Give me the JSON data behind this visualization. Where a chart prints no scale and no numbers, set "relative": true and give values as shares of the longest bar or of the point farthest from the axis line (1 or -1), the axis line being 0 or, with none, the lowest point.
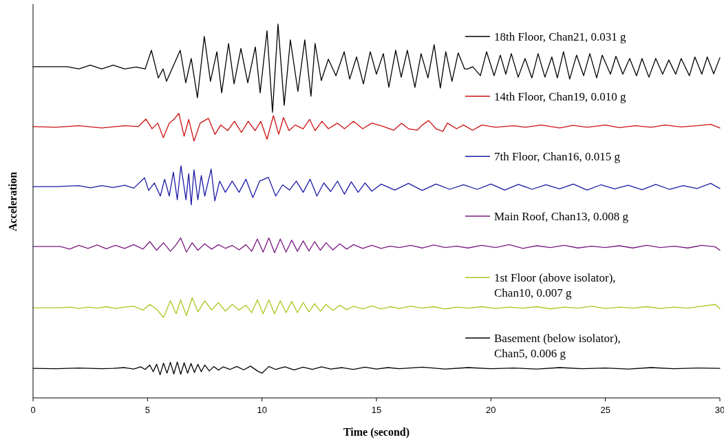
{
  "chart_data": {
    "type": "line",
    "relative": true,
    "xlabel": "Time (second)",
    "ylabel": "Acceleration",
    "xlim": [
      0,
      30
    ],
    "xticks": [
      0,
      5,
      10,
      15,
      20,
      25,
      30
    ],
    "grid": false,
    "legend": "right",
    "series": [
      {
        "name": "18th Floor, Chan21, 0.031 g",
        "color": "#000000",
        "x": [
          0,
          1.5,
          2,
          2.5,
          3,
          3.5,
          4,
          4.5,
          4.9,
          5.17,
          5.47,
          5.68,
          5.83,
          6.43,
          6.67,
          6.91,
          7.18,
          7.48,
          7.75,
          8.03,
          8.24,
          8.54,
          8.78,
          9.08,
          9.38,
          9.71,
          9.92,
          10.22,
          10.46,
          10.7,
          10.97,
          11.24,
          11.57,
          11.87,
          12.14,
          12.32,
          12.59,
          12.9,
          13.23,
          13.59,
          13.83,
          14.13,
          14.43,
          14.73,
          15.0,
          15.3,
          15.54,
          15.84,
          16.08,
          16.35,
          16.68,
          16.95,
          17.25,
          17.52,
          17.79,
          18.03,
          18.3,
          18.57,
          18.85,
          19.0,
          19.2,
          19.54,
          19.81,
          20.14,
          20.41,
          20.65,
          20.89,
          21.19,
          21.49,
          21.79,
          22.06,
          22.36,
          22.66,
          22.9,
          23.17,
          23.44,
          23.74,
          24.05,
          24.32,
          24.62,
          24.86,
          25.22,
          25.46,
          25.76,
          26.06,
          26.36,
          26.6,
          26.9,
          27.2,
          27.5,
          27.77,
          28.07,
          28.31,
          28.67,
          28.91,
          29.21,
          29.45,
          29.73,
          30
        ],
        "values": [
          0.886,
          0.886,
          0.88,
          0.89,
          0.88,
          0.89,
          0.88,
          0.885,
          0.88,
          0.93,
          0.856,
          0.88,
          0.847,
          0.93,
          0.843,
          0.908,
          0.803,
          0.967,
          0.847,
          0.926,
          0.816,
          0.948,
          0.84,
          0.935,
          0.843,
          0.939,
          0.816,
          0.982,
          0.764,
          1.0,
          0.783,
          0.958,
          0.82,
          0.958,
          0.807,
          0.948,
          0.849,
          0.906,
          0.862,
          0.926,
          0.853,
          0.912,
          0.84,
          0.926,
          0.866,
          0.921,
          0.831,
          0.93,
          0.858,
          0.93,
          0.831,
          0.921,
          0.856,
          0.945,
          0.829,
          0.926,
          0.847,
          0.923,
          0.88,
          0.88,
          0.886,
          0.862,
          0.926,
          0.862,
          0.917,
          0.866,
          0.921,
          0.858,
          0.908,
          0.856,
          0.921,
          0.858,
          0.912,
          0.856,
          0.926,
          0.853,
          0.917,
          0.862,
          0.921,
          0.856,
          0.917,
          0.866,
          0.914,
          0.866,
          0.908,
          0.862,
          0.908,
          0.858,
          0.908,
          0.866,
          0.904,
          0.866,
          0.908,
          0.862,
          0.912,
          0.866,
          0.912,
          0.867,
          0.91
        ]
      },
      {
        "name": "14th Floor, Chan19, 0.010 g",
        "color": "#cc1111",
        "x": [
          0,
          1,
          2,
          3,
          4,
          4.6,
          4.93,
          5.2,
          5.45,
          5.69,
          5.95,
          6.15,
          6.37,
          6.6,
          6.8,
          7.03,
          7.3,
          7.66,
          7.95,
          8.2,
          8.5,
          8.8,
          9.1,
          9.4,
          9.7,
          9.95,
          10.22,
          10.5,
          10.73,
          10.94,
          11.18,
          11.45,
          11.8,
          12.08,
          12.32,
          12.62,
          12.9,
          13.3,
          13.6,
          14.0,
          14.4,
          14.8,
          15.2,
          15.75,
          16.1,
          16.4,
          16.78,
          17.0,
          17.28,
          17.6,
          17.9,
          18.1,
          18.5,
          18.8,
          19.2,
          19.6,
          20.2,
          21,
          21.5,
          22.2,
          23,
          23.6,
          24.2,
          25,
          25.6,
          26.3,
          27,
          27.6,
          28.3,
          29,
          29.6,
          30
        ],
        "values": [
          0.726,
          0.724,
          0.728,
          0.722,
          0.728,
          0.726,
          0.746,
          0.72,
          0.735,
          0.696,
          0.735,
          0.745,
          0.761,
          0.7,
          0.745,
          0.687,
          0.735,
          0.748,
          0.705,
          0.73,
          0.715,
          0.74,
          0.71,
          0.74,
          0.715,
          0.74,
          0.692,
          0.755,
          0.705,
          0.75,
          0.715,
          0.73,
          0.72,
          0.745,
          0.715,
          0.74,
          0.72,
          0.735,
          0.72,
          0.74,
          0.72,
          0.735,
          0.728,
          0.716,
          0.735,
          0.72,
          0.716,
          0.73,
          0.742,
          0.72,
          0.713,
          0.735,
          0.72,
          0.73,
          0.716,
          0.73,
          0.724,
          0.728,
          0.724,
          0.73,
          0.722,
          0.729,
          0.724,
          0.73,
          0.723,
          0.728,
          0.724,
          0.73,
          0.725,
          0.728,
          0.732,
          0.722
        ]
      },
      {
        "name": "7th Floor, Chan16, 0.015 g",
        "color": "#1a1aa6",
        "x": [
          0,
          1,
          2,
          2.5,
          3,
          3.5,
          4,
          4.4,
          4.87,
          5.05,
          5.3,
          5.56,
          5.75,
          5.95,
          6.13,
          6.3,
          6.46,
          6.68,
          6.8,
          6.91,
          7.03,
          7.2,
          7.35,
          7.5,
          7.78,
          7.94,
          8.15,
          8.4,
          8.7,
          9.0,
          9.3,
          9.6,
          9.9,
          10.28,
          10.6,
          10.9,
          11.2,
          11.5,
          11.8,
          12.1,
          12.4,
          12.7,
          13.0,
          13.3,
          13.6,
          13.9,
          14.2,
          14.5,
          14.8,
          15.2,
          15.8,
          16.4,
          17.0,
          17.6,
          18.2,
          18.8,
          19.4,
          20,
          20.6,
          21.2,
          21.8,
          22.4,
          23,
          23.6,
          24.2,
          24.8,
          25.4,
          26,
          26.6,
          27.2,
          27.8,
          28.4,
          29,
          29.6,
          30
        ],
        "values": [
          0.565,
          0.565,
          0.568,
          0.562,
          0.568,
          0.563,
          0.569,
          0.561,
          0.589,
          0.555,
          0.575,
          0.54,
          0.585,
          0.54,
          0.604,
          0.53,
          0.621,
          0.53,
          0.6,
          0.516,
          0.61,
          0.53,
          0.595,
          0.54,
          0.612,
          0.527,
          0.58,
          0.55,
          0.58,
          0.55,
          0.585,
          0.536,
          0.58,
          0.59,
          0.54,
          0.57,
          0.556,
          0.58,
          0.55,
          0.585,
          0.54,
          0.575,
          0.552,
          0.58,
          0.545,
          0.578,
          0.55,
          0.575,
          0.553,
          0.572,
          0.556,
          0.574,
          0.555,
          0.572,
          0.558,
          0.57,
          0.558,
          0.572,
          0.556,
          0.571,
          0.558,
          0.57,
          0.559,
          0.572,
          0.556,
          0.57,
          0.559,
          0.569,
          0.557,
          0.571,
          0.558,
          0.568,
          0.56,
          0.574,
          0.56
        ]
      },
      {
        "name": "Main Roof, Chan13, 0.008 g",
        "color": "#7a1a80",
        "x": [
          0,
          1.2,
          1.6,
          2.0,
          2.4,
          2.8,
          3.2,
          3.6,
          4.0,
          4.4,
          4.8,
          5.1,
          5.4,
          5.7,
          6.0,
          6.25,
          6.45,
          6.7,
          6.95,
          7.2,
          7.5,
          7.8,
          8.1,
          8.4,
          8.7,
          9.0,
          9.3,
          9.55,
          9.8,
          10.05,
          10.3,
          10.55,
          10.8,
          11.05,
          11.3,
          11.55,
          11.8,
          12.05,
          12.3,
          12.55,
          12.8,
          13.1,
          13.4,
          13.7,
          14.0,
          14.4,
          14.8,
          15.2,
          15.6,
          16.0,
          16.5,
          17.0,
          17.5,
          18.0,
          18.5,
          19.0,
          19.6,
          20.2,
          20.8,
          21.4,
          22,
          22.6,
          23.2,
          23.8,
          24.4,
          25,
          25.6,
          26.2,
          26.8,
          27.4,
          28,
          28.6,
          29.2,
          29.8,
          30
        ],
        "values": [
          0.405,
          0.405,
          0.398,
          0.408,
          0.4,
          0.409,
          0.399,
          0.408,
          0.4,
          0.41,
          0.398,
          0.418,
          0.395,
          0.415,
          0.392,
          0.41,
          0.428,
          0.39,
          0.415,
          0.395,
          0.412,
          0.398,
          0.41,
          0.4,
          0.408,
          0.396,
          0.41,
          0.392,
          0.425,
          0.39,
          0.428,
          0.388,
          0.425,
          0.39,
          0.422,
          0.392,
          0.42,
          0.393,
          0.418,
          0.395,
          0.415,
          0.396,
          0.412,
          0.398,
          0.41,
          0.4,
          0.408,
          0.4,
          0.406,
          0.402,
          0.408,
          0.401,
          0.409,
          0.402,
          0.406,
          0.401,
          0.408,
          0.402,
          0.41,
          0.4,
          0.407,
          0.402,
          0.408,
          0.401,
          0.406,
          0.402,
          0.407,
          0.401,
          0.408,
          0.402,
          0.406,
          0.401,
          0.408,
          0.404,
          0.395
        ]
      },
      {
        "name": "1st Floor (above isolator), Chan10, 0.007 g",
        "color": "#a6c81e",
        "x": [
          0,
          1.2,
          1.6,
          2.0,
          2.4,
          2.8,
          3.2,
          3.6,
          4.0,
          4.4,
          4.8,
          5.1,
          5.4,
          5.7,
          6.0,
          6.25,
          6.45,
          6.7,
          6.95,
          7.2,
          7.5,
          7.8,
          8.1,
          8.4,
          8.7,
          9.0,
          9.3,
          9.55,
          9.8,
          10.05,
          10.3,
          10.55,
          10.8,
          11.05,
          11.3,
          11.55,
          11.8,
          12.05,
          12.3,
          12.55,
          12.8,
          13.1,
          13.4,
          13.7,
          14.0,
          14.4,
          14.8,
          15.2,
          15.6,
          16.0,
          16.5,
          17.0,
          17.5,
          18.0,
          18.5,
          19.0,
          19.6,
          20.2,
          20.8,
          21.4,
          22,
          22.6,
          23.2,
          23.8,
          24.4,
          25,
          25.6,
          26.2,
          26.8,
          27.4,
          28,
          28.6,
          29.2,
          29.8,
          30
        ],
        "values": [
          0.241,
          0.241,
          0.243,
          0.239,
          0.243,
          0.24,
          0.244,
          0.239,
          0.243,
          0.245,
          0.235,
          0.25,
          0.237,
          0.215,
          0.26,
          0.225,
          0.262,
          0.22,
          0.268,
          0.23,
          0.26,
          0.235,
          0.255,
          0.232,
          0.25,
          0.235,
          0.248,
          0.228,
          0.262,
          0.225,
          0.262,
          0.225,
          0.26,
          0.228,
          0.258,
          0.228,
          0.255,
          0.23,
          0.252,
          0.232,
          0.25,
          0.234,
          0.248,
          0.236,
          0.245,
          0.238,
          0.246,
          0.238,
          0.244,
          0.239,
          0.245,
          0.24,
          0.244,
          0.238,
          0.243,
          0.24,
          0.244,
          0.239,
          0.243,
          0.24,
          0.244,
          0.238,
          0.243,
          0.24,
          0.245,
          0.239,
          0.243,
          0.24,
          0.244,
          0.239,
          0.243,
          0.24,
          0.245,
          0.25,
          0.238
        ]
      },
      {
        "name": "Basement (below isolator), Chan5, 0.006 g",
        "color": "#000000",
        "x": [
          0,
          1,
          2,
          3,
          3.5,
          4,
          4.4,
          4.7,
          4.9,
          5.1,
          5.25,
          5.4,
          5.55,
          5.7,
          5.85,
          6.0,
          6.15,
          6.3,
          6.45,
          6.6,
          6.75,
          6.9,
          7.05,
          7.2,
          7.35,
          7.5,
          7.7,
          7.9,
          8.1,
          8.3,
          8.6,
          8.9,
          9.2,
          9.5,
          9.8,
          10.0,
          10.3,
          10.6,
          11.0,
          11.4,
          11.8,
          12.2,
          12.6,
          13.0,
          13.5,
          14,
          14.5,
          15,
          15.5,
          16,
          17,
          18,
          19,
          20,
          21,
          22,
          23,
          24,
          25,
          26,
          27,
          28,
          29,
          30
        ],
        "values": [
          0.079,
          0.078,
          0.08,
          0.078,
          0.079,
          0.081,
          0.077,
          0.083,
          0.076,
          0.088,
          0.07,
          0.09,
          0.062,
          0.093,
          0.066,
          0.095,
          0.064,
          0.096,
          0.063,
          0.094,
          0.066,
          0.092,
          0.068,
          0.09,
          0.07,
          0.088,
          0.072,
          0.084,
          0.074,
          0.083,
          0.076,
          0.084,
          0.075,
          0.085,
          0.072,
          0.066,
          0.084,
          0.076,
          0.083,
          0.075,
          0.082,
          0.076,
          0.083,
          0.077,
          0.081,
          0.076,
          0.082,
          0.077,
          0.081,
          0.078,
          0.082,
          0.077,
          0.081,
          0.078,
          0.08,
          0.077,
          0.081,
          0.078,
          0.08,
          0.077,
          0.081,
          0.078,
          0.08,
          0.079
        ]
      }
    ]
  }
}
